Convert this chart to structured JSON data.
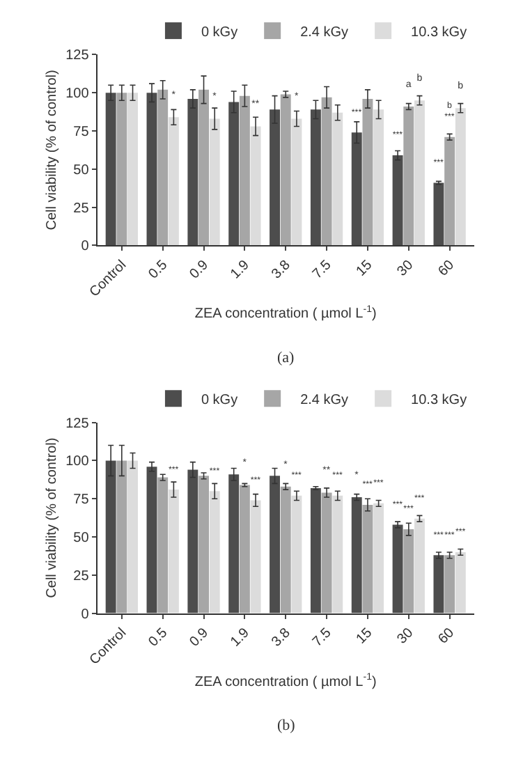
{
  "chart_data": [
    {
      "type": "bar",
      "categories": [
        "Control",
        "0.5",
        "0.9",
        "1.9",
        "3.8",
        "7.5",
        "15",
        "30",
        "60"
      ],
      "xlabel": "ZEA concentration ( µmol L$^{-1}$)",
      "ylabel": "Cell viability (% of control)",
      "ylim": [
        0,
        125
      ],
      "yticks": [
        0,
        25,
        50,
        75,
        100,
        125
      ],
      "legend": "top right",
      "annotations": [
        "(a)"
      ],
      "series": [
        {
          "name": "0 kGy",
          "color": "#4d4d4d",
          "values": [
            100,
            100,
            96,
            94,
            89,
            89,
            74,
            59,
            41
          ],
          "errors": [
            5,
            6,
            6,
            7,
            9,
            6,
            7,
            3,
            1
          ],
          "value_labels": [
            null,
            null,
            null,
            null,
            null,
            null,
            "***",
            "***",
            "***"
          ]
        },
        {
          "name": "2.4 kGy",
          "color": "#a6a6a6",
          "values": [
            100,
            102,
            102,
            98,
            99,
            97,
            96,
            91,
            71
          ],
          "errors": [
            5,
            6,
            9,
            7,
            2,
            7,
            6,
            2,
            2
          ],
          "value_labels": [
            null,
            null,
            null,
            null,
            null,
            null,
            null,
            "a",
            "b\n***"
          ]
        },
        {
          "name": "10.3 kGy",
          "color": "#dcdcdc",
          "values": [
            100,
            84,
            83,
            78,
            83,
            87,
            89,
            95,
            90
          ],
          "errors": [
            5,
            5,
            7,
            6,
            5,
            5,
            6,
            3,
            3
          ],
          "value_labels": [
            null,
            "*",
            "*",
            "**",
            "*",
            null,
            null,
            "b",
            "b"
          ]
        }
      ]
    },
    {
      "type": "bar",
      "categories": [
        "Control",
        "0.5",
        "0.9",
        "1.9",
        "3.8",
        "7.5",
        "15",
        "30",
        "60"
      ],
      "xlabel": "ZEA concentration ( µmol L$^{-1}$)",
      "ylabel": "Cell viability (% of control)",
      "ylim": [
        0,
        125
      ],
      "yticks": [
        0,
        25,
        50,
        75,
        100,
        125
      ],
      "legend": "top right",
      "annotations": [
        "(b)"
      ],
      "series": [
        {
          "name": "0 kGy",
          "color": "#4d4d4d",
          "values": [
            100,
            96,
            94,
            91,
            90,
            82,
            76,
            58,
            38
          ],
          "errors": [
            10,
            3,
            5,
            4,
            5,
            1,
            2,
            2,
            2
          ],
          "value_labels": [
            null,
            null,
            null,
            null,
            null,
            null,
            "*",
            "***",
            "***"
          ]
        },
        {
          "name": "2.4 kGy",
          "color": "#a6a6a6",
          "values": [
            100,
            89,
            90,
            84,
            83,
            79,
            71,
            55,
            38
          ],
          "errors": [
            10,
            2,
            2,
            1,
            2,
            3,
            4,
            4,
            2
          ],
          "value_labels": [
            null,
            null,
            null,
            "*",
            "*",
            "**",
            "***",
            "***",
            "***"
          ]
        },
        {
          "name": "10.3 kGy",
          "color": "#dcdcdc",
          "values": [
            100,
            81,
            80,
            74,
            77,
            77,
            72,
            62,
            40
          ],
          "errors": [
            5,
            5,
            5,
            4,
            3,
            3,
            2,
            2,
            2
          ],
          "value_labels": [
            null,
            "***",
            "***",
            "***",
            "***",
            "***",
            "***",
            "***",
            "***"
          ]
        }
      ]
    }
  ]
}
